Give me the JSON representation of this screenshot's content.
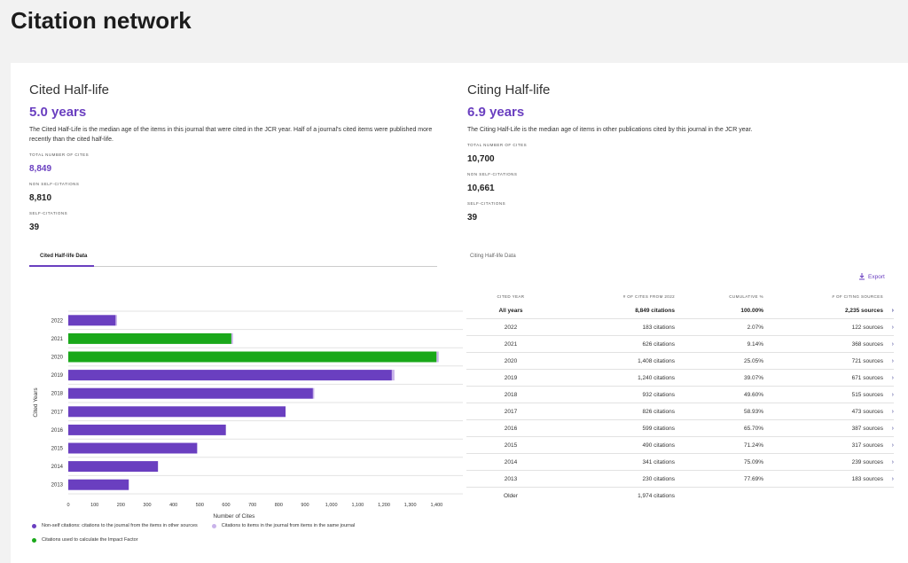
{
  "page": {
    "title": "Citation network"
  },
  "cited": {
    "title": "Cited Half-life",
    "value": "5.0 years",
    "desc": "The Cited Half-Life is the median age of the items in this journal that were cited in the JCR year. Half of a journal's cited items were published more recently than the cited half-life.",
    "total_label": "TOTAL NUMBER OF CITES",
    "total": "8,849",
    "nonself_label": "NON SELF-CITATIONS",
    "nonself": "8,810",
    "self_label": "SELF-CITATIONS",
    "self": "39"
  },
  "citing": {
    "title": "Citing Half-life",
    "value": "6.9 years",
    "desc": "The Citing Half-Life is the median age of items in other publications cited by this journal in the JCR year.",
    "total_label": "TOTAL NUMBER OF CITES",
    "total": "10,700",
    "nonself_label": "NON SELF-CITATIONS",
    "nonself": "10,661",
    "self_label": "SELF-CITATIONS",
    "self": "39"
  },
  "tabs": {
    "cited": "Cited Half-life Data",
    "citing": "Citing Half-life Data"
  },
  "export_label": "Export",
  "colors": {
    "purple": "#6a3fc0",
    "green": "#1aa81a",
    "light_purple": "#c9b3ea"
  },
  "chart_data": {
    "type": "bar",
    "orientation": "horizontal",
    "ylabel": "Cited Years",
    "xlabel": "Number of Cites",
    "categories": [
      "2022",
      "2021",
      "2020",
      "2019",
      "2018",
      "2017",
      "2016",
      "2015",
      "2014",
      "2013"
    ],
    "series": [
      {
        "name": "Non-self citations: citations to the journal from the items in other sources",
        "values": [
          180,
          620,
          1400,
          1230,
          930,
          826,
          599,
          490,
          341,
          230
        ]
      },
      {
        "name": "Citations to items in the journal from items in the same journal",
        "values": [
          3,
          6,
          8,
          10,
          2,
          0,
          0,
          0,
          0,
          0
        ]
      }
    ],
    "impact_factor_years": [
      "2021",
      "2020"
    ],
    "impact_factor_label": "Citations used to calculate the Impact Factor",
    "xticks": [
      0,
      100,
      200,
      300,
      400,
      500,
      600,
      700,
      800,
      900,
      1000,
      1100,
      1200,
      1300,
      1400
    ],
    "xtick_labels": [
      "0",
      "100",
      "200",
      "300",
      "400",
      "500",
      "600",
      "700",
      "800",
      "900",
      "1,000",
      "1,100",
      "1,200",
      "1,300",
      "1,400"
    ],
    "xlim": [
      0,
      1500
    ],
    "grid": true
  },
  "table": {
    "headers": [
      "CITED YEAR",
      "# OF CITES FROM 2022",
      "CUMULATIVE %",
      "# OF CITING SOURCES"
    ],
    "all": {
      "year": "All years",
      "cites": "8,849 citations",
      "cum": "100.00%",
      "sources": "2,235 sources"
    },
    "rows": [
      {
        "year": "2022",
        "cites": "183 citations",
        "cum": "2.07%",
        "sources": "122 sources"
      },
      {
        "year": "2021",
        "cites": "626 citations",
        "cum": "9.14%",
        "sources": "368 sources"
      },
      {
        "year": "2020",
        "cites": "1,408 citations",
        "cum": "25.05%",
        "sources": "721 sources"
      },
      {
        "year": "2019",
        "cites": "1,240 citations",
        "cum": "39.07%",
        "sources": "671 sources"
      },
      {
        "year": "2018",
        "cites": "932 citations",
        "cum": "49.60%",
        "sources": "515 sources"
      },
      {
        "year": "2017",
        "cites": "826 citations",
        "cum": "58.93%",
        "sources": "473 sources"
      },
      {
        "year": "2016",
        "cites": "599 citations",
        "cum": "65.70%",
        "sources": "387 sources"
      },
      {
        "year": "2015",
        "cites": "490 citations",
        "cum": "71.24%",
        "sources": "317 sources"
      },
      {
        "year": "2014",
        "cites": "341 citations",
        "cum": "75.09%",
        "sources": "239 sources"
      },
      {
        "year": "2013",
        "cites": "230 citations",
        "cum": "77.69%",
        "sources": "183 sources"
      }
    ],
    "older": {
      "year": "Older",
      "cites": "1,974 citations"
    }
  }
}
